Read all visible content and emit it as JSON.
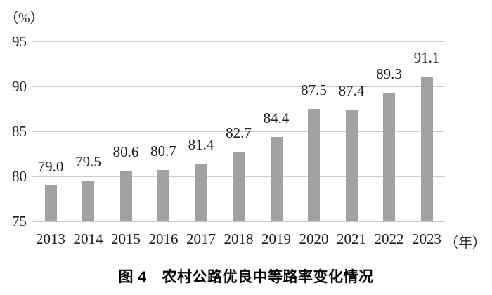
{
  "caption": {
    "number": "图 4",
    "title": "农村公路优良中等路率变化情况"
  },
  "chart_data": {
    "type": "bar",
    "title": "图 4 农村公路优良中等路率变化情况",
    "y_unit_label": "（%）",
    "x_unit_label": "（年）",
    "categories": [
      "2013",
      "2014",
      "2015",
      "2016",
      "2017",
      "2018",
      "2019",
      "2020",
      "2021",
      "2022",
      "2023"
    ],
    "values": [
      79.0,
      79.5,
      80.6,
      80.7,
      81.4,
      82.7,
      84.4,
      87.5,
      87.4,
      89.3,
      91.1
    ],
    "value_labels": [
      "79.0",
      "79.5",
      "80.6",
      "80.7",
      "81.4",
      "82.7",
      "84.4",
      "87.5",
      "87.4",
      "89.3",
      "91.1"
    ],
    "xlabel": "年",
    "ylabel": "%",
    "ylim": [
      75,
      95
    ],
    "yticks": [
      95,
      90,
      85,
      80,
      75
    ],
    "grid": true,
    "legend_position": "none",
    "bar_color": "#a1a1a1",
    "gridline_color": "#c9c9c9"
  }
}
